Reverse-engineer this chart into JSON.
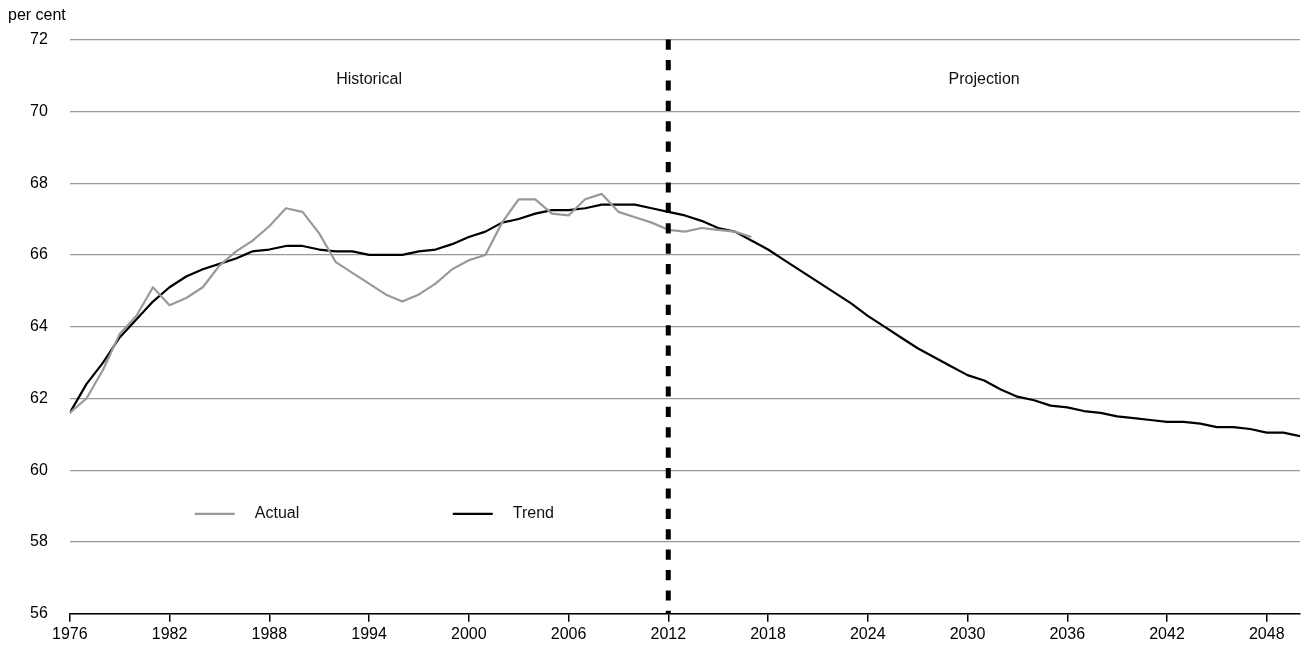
{
  "chart_data": {
    "type": "line",
    "ylabel": "per cent",
    "xlim": [
      1976,
      2050
    ],
    "xticks": [
      1976,
      1982,
      1988,
      1994,
      2000,
      2006,
      2012,
      2018,
      2024,
      2030,
      2036,
      2042,
      2048
    ],
    "ylim": [
      56,
      72
    ],
    "yticks": [
      56,
      58,
      60,
      62,
      64,
      66,
      68,
      70,
      72
    ],
    "grid": "y",
    "legend": "bottom left",
    "marker": "none",
    "line_style": "solid",
    "annotations": [
      "Historical",
      "Projection"
    ],
    "ref_lines": [
      {
        "axis": "x",
        "value": 2012,
        "label": null,
        "color": "#000000",
        "line_style": "dashed"
      }
    ],
    "series": [
      {
        "name": "Actual",
        "color": "#999999",
        "x": [
          1976,
          1977,
          1978,
          1979,
          1980,
          1981,
          1982,
          1983,
          1984,
          1985,
          1986,
          1987,
          1988,
          1989,
          1990,
          1991,
          1992,
          1993,
          1994,
          1995,
          1996,
          1997,
          1998,
          1999,
          2000,
          2001,
          2002,
          2003,
          2004,
          2005,
          2006,
          2007,
          2008,
          2009,
          2010,
          2011,
          2012,
          2013,
          2014,
          2015,
          2016,
          2017
        ],
        "values": [
          61.6,
          62.0,
          62.8,
          63.8,
          64.3,
          65.1,
          64.6,
          64.8,
          65.1,
          65.7,
          66.1,
          66.4,
          66.8,
          67.3,
          67.2,
          66.6,
          65.8,
          65.5,
          65.2,
          64.9,
          64.7,
          64.9,
          65.2,
          65.6,
          65.85,
          66.0,
          66.9,
          67.55,
          67.55,
          67.15,
          67.1,
          67.55,
          67.7,
          67.2,
          67.05,
          66.9,
          66.7,
          66.65,
          66.75,
          66.7,
          66.65,
          66.5
        ]
      },
      {
        "name": "Trend",
        "color": "#000000",
        "x": [
          1976,
          1977,
          1978,
          1979,
          1980,
          1981,
          1982,
          1983,
          1984,
          1985,
          1986,
          1987,
          1988,
          1989,
          1990,
          1991,
          1992,
          1993,
          1994,
          1995,
          1996,
          1997,
          1998,
          1999,
          2000,
          2001,
          2002,
          2003,
          2004,
          2005,
          2006,
          2007,
          2008,
          2009,
          2010,
          2011,
          2012,
          2013,
          2014,
          2015,
          2016,
          2017,
          2018,
          2019,
          2020,
          2021,
          2022,
          2023,
          2024,
          2025,
          2026,
          2027,
          2028,
          2029,
          2030,
          2031,
          2032,
          2033,
          2034,
          2035,
          2036,
          2037,
          2038,
          2039,
          2040,
          2041,
          2042,
          2043,
          2044,
          2045,
          2046,
          2047,
          2048,
          2049,
          2050
        ],
        "values": [
          61.6,
          62.4,
          63.0,
          63.7,
          64.2,
          64.7,
          65.1,
          65.4,
          65.6,
          65.75,
          65.9,
          66.1,
          66.15,
          66.25,
          66.25,
          66.15,
          66.1,
          66.1,
          66.0,
          66.0,
          66.0,
          66.1,
          66.15,
          66.3,
          66.5,
          66.65,
          66.9,
          67.0,
          67.15,
          67.25,
          67.25,
          67.3,
          67.4,
          67.4,
          67.4,
          67.3,
          67.2,
          67.1,
          66.95,
          66.75,
          66.65,
          66.4,
          66.15,
          65.85,
          65.55,
          65.25,
          64.95,
          64.65,
          64.3,
          64.0,
          63.7,
          63.4,
          63.15,
          62.9,
          62.65,
          62.5,
          62.25,
          62.05,
          61.95,
          61.8,
          61.75,
          61.65,
          61.6,
          61.5,
          61.45,
          61.4,
          61.35,
          61.35,
          61.3,
          61.2,
          61.2,
          61.15,
          61.05,
          61.05,
          60.95
        ]
      }
    ]
  }
}
